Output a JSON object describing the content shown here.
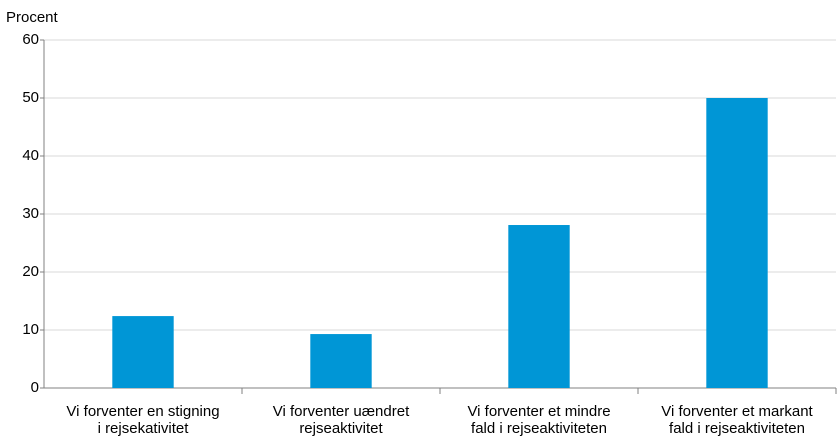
{
  "chart_data": {
    "type": "bar",
    "y_label": "Procent",
    "categories": [
      [
        "Vi forventer en stigning",
        "i rejsekativitet"
      ],
      [
        "Vi forventer uændret",
        "rejseaktivitet"
      ],
      [
        "Vi forventer et mindre",
        "fald i rejseaktiviteten"
      ],
      [
        "Vi forventer et markant",
        "fald i rejseaktiviteten"
      ]
    ],
    "values": [
      12.4,
      9.3,
      28.1,
      50.0
    ],
    "color": "#0096d6",
    "ylim": [
      0,
      60
    ],
    "yticks": [
      0,
      10,
      20,
      30,
      40,
      50,
      60
    ],
    "grid": true
  }
}
